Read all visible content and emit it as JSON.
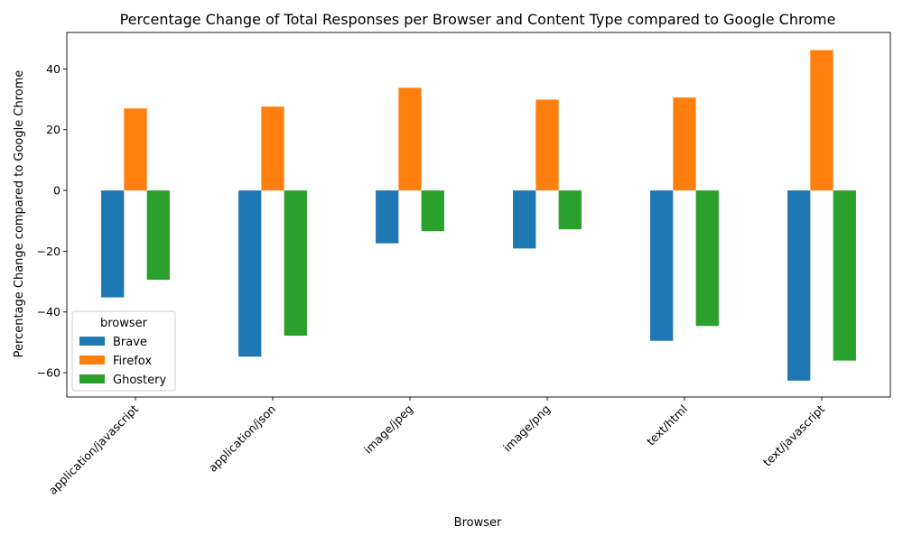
{
  "chart_data": {
    "type": "bar",
    "title": "Percentage Change of Total Responses per Browser and Content Type compared to Google Chrome",
    "xlabel": "Browser",
    "ylabel": "Percentage Change compared to Google Chrome",
    "categories": [
      "application/javascript",
      "application/json",
      "image/jpeg",
      "image/png",
      "text/html",
      "text/javascript"
    ],
    "series": [
      {
        "name": "Brave",
        "color": "#1f77b4",
        "values": [
          -35.2,
          -54.7,
          -17.4,
          -19.1,
          -49.5,
          -62.6
        ]
      },
      {
        "name": "Firefox",
        "color": "#ff7f0e",
        "values": [
          27.0,
          27.6,
          33.8,
          29.9,
          30.6,
          46.2
        ]
      },
      {
        "name": "Ghostery",
        "color": "#2ca02c",
        "values": [
          -29.4,
          -47.8,
          -13.4,
          -12.8,
          -44.6,
          -56.0
        ]
      }
    ],
    "ylim": [
      -68,
      52
    ],
    "yticks": [
      -60,
      -40,
      -20,
      0,
      20,
      40
    ],
    "grid": false,
    "legend": {
      "title": "browser",
      "position": "lower-left"
    }
  }
}
